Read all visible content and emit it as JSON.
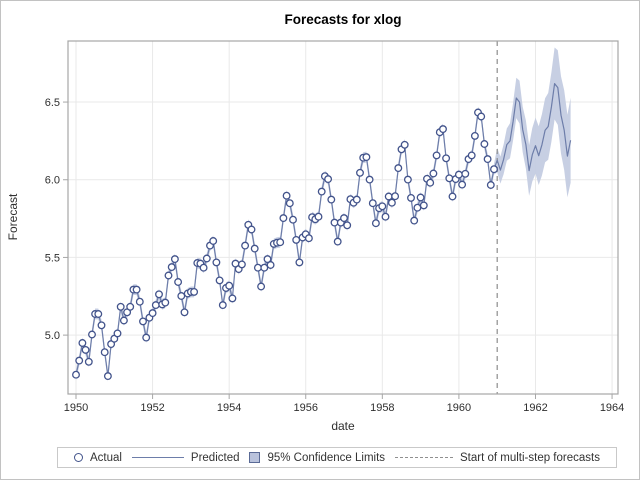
{
  "figure": {
    "title": "Forecasts for xlog",
    "x_axis": {
      "label": "date"
    },
    "y_axis": {
      "label": "Forecast"
    },
    "legend": [
      {
        "label": "Actual",
        "swatch": "open-circle-marker"
      },
      {
        "label": "Predicted",
        "swatch": "solid-line"
      },
      {
        "label": "95% Confidence Limits",
        "swatch": "filled-band-square"
      },
      {
        "label": "Start of multi-step forecasts",
        "swatch": "dashed-line"
      }
    ],
    "colors": {
      "predicted_line": "#6d7da9",
      "actual_marker_stroke": "#42538b",
      "confidence_band": "#c4cce2",
      "reference_dash": "#8c8c8c",
      "gridline": "#e9e9e9",
      "frame": "#a6a6a6",
      "text": "#2f2f2f"
    }
  },
  "chart_data": {
    "type": "line",
    "title": "Forecasts for xlog",
    "xlabel": "date",
    "ylabel": "Forecast",
    "xlim": [
      1949.791,
      1964.155
    ],
    "ylim": [
      4.621,
      6.893
    ],
    "x_ticks": [
      {
        "value": 1950,
        "label": "1950"
      },
      {
        "value": 1952,
        "label": "1952"
      },
      {
        "value": 1954,
        "label": "1954"
      },
      {
        "value": 1956,
        "label": "1956"
      },
      {
        "value": 1958,
        "label": "1958"
      },
      {
        "value": 1960,
        "label": "1960"
      },
      {
        "value": 1962,
        "label": "1962"
      },
      {
        "value": 1964,
        "label": "1964"
      }
    ],
    "y_ticks": [
      {
        "value": 5.0,
        "label": "5.0"
      },
      {
        "value": 5.5,
        "label": "5.5"
      },
      {
        "value": 6.0,
        "label": "6.0"
      },
      {
        "value": 6.5,
        "label": "6.5"
      }
    ],
    "grid": true,
    "legend_position": "bottom",
    "forecast_start": 1961.0,
    "frequency": "monthly",
    "actual": {
      "start_year": 1950,
      "values": [
        4.745,
        4.836,
        4.949,
        4.905,
        4.828,
        5.004,
        5.136,
        5.136,
        5.063,
        4.89,
        4.736,
        4.942,
        4.977,
        5.011,
        5.182,
        5.094,
        5.147,
        5.182,
        5.293,
        5.293,
        5.215,
        5.088,
        4.984,
        5.112,
        5.142,
        5.193,
        5.263,
        5.198,
        5.209,
        5.384,
        5.438,
        5.489,
        5.342,
        5.252,
        5.147,
        5.268,
        5.278,
        5.278,
        5.464,
        5.46,
        5.434,
        5.493,
        5.576,
        5.606,
        5.468,
        5.352,
        5.193,
        5.303,
        5.318,
        5.236,
        5.46,
        5.425,
        5.455,
        5.576,
        5.71,
        5.68,
        5.557,
        5.434,
        5.313,
        5.434,
        5.489,
        5.451,
        5.587,
        5.595,
        5.598,
        5.753,
        5.897,
        5.849,
        5.743,
        5.613,
        5.468,
        5.628,
        5.649,
        5.624,
        5.759,
        5.746,
        5.762,
        5.924,
        6.023,
        6.004,
        5.872,
        5.724,
        5.602,
        5.724,
        5.753,
        5.707,
        5.875,
        5.852,
        5.872,
        6.045,
        6.142,
        6.146,
        6.001,
        5.849,
        5.72,
        5.817,
        5.829,
        5.762,
        5.892,
        5.852,
        5.894,
        6.075,
        6.196,
        6.225,
        6.001,
        5.883,
        5.737,
        5.82,
        5.886,
        5.835,
        6.006,
        5.981,
        6.04,
        6.157,
        6.306,
        6.326,
        6.138,
        6.009,
        5.892,
        6.004,
        6.033,
        5.969,
        6.038,
        6.133,
        6.157,
        6.282,
        6.433,
        6.407,
        6.23,
        6.133,
        5.966,
        6.068
      ]
    },
    "forecast": {
      "start_year": 1961,
      "values": [
        6.126,
        6.062,
        6.131,
        6.226,
        6.25,
        6.375,
        6.526,
        6.5,
        6.323,
        6.226,
        6.059,
        6.161,
        6.219,
        6.155,
        6.224,
        6.319,
        6.343,
        6.468,
        6.619,
        6.593,
        6.416,
        6.319,
        6.152,
        6.254
      ],
      "lower": [
        6.048,
        5.975,
        6.036,
        6.122,
        6.138,
        6.254,
        6.397,
        6.362,
        6.177,
        6.071,
        5.896,
        5.989,
        6.039,
        5.966,
        6.027,
        6.113,
        6.129,
        6.245,
        6.388,
        6.353,
        6.168,
        6.062,
        5.887,
        5.98
      ],
      "upper": [
        6.205,
        6.149,
        6.227,
        6.33,
        6.363,
        6.496,
        6.656,
        6.638,
        6.47,
        6.381,
        6.223,
        6.333,
        6.4,
        6.344,
        6.422,
        6.525,
        6.558,
        6.691,
        6.851,
        6.833,
        6.665,
        6.576,
        6.418,
        6.528
      ]
    },
    "ci_in_sample_half_width": 0.035
  }
}
